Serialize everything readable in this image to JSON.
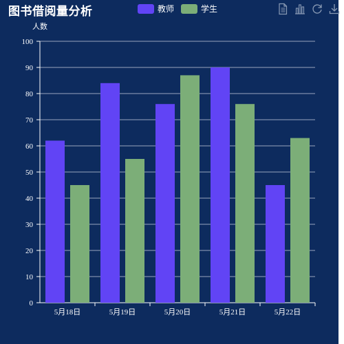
{
  "title": "图书借阅量分析",
  "legend": [
    {
      "name": "教师",
      "color": "#6144f5"
    },
    {
      "name": "学生",
      "color": "#7cae78"
    }
  ],
  "toolbox": [
    "file-text-icon",
    "bar-chart-icon",
    "refresh-icon",
    "download-icon"
  ],
  "chart_data": {
    "type": "bar",
    "title": "图书借阅量分析",
    "ylabel": "人数",
    "xlabel": "",
    "categories": [
      "5月18日",
      "5月19日",
      "5月20日",
      "5月21日",
      "5月22日"
    ],
    "series": [
      {
        "name": "教师",
        "color": "#6144f5",
        "values": [
          62,
          84,
          76,
          90,
          45
        ]
      },
      {
        "name": "学生",
        "color": "#7cae78",
        "values": [
          45,
          55,
          87,
          76,
          63
        ]
      }
    ],
    "ylim": [
      0,
      100
    ],
    "yticks": [
      0,
      10,
      20,
      30,
      40,
      50,
      60,
      70,
      80,
      90,
      100
    ],
    "grid": true,
    "legend_position": "top"
  }
}
